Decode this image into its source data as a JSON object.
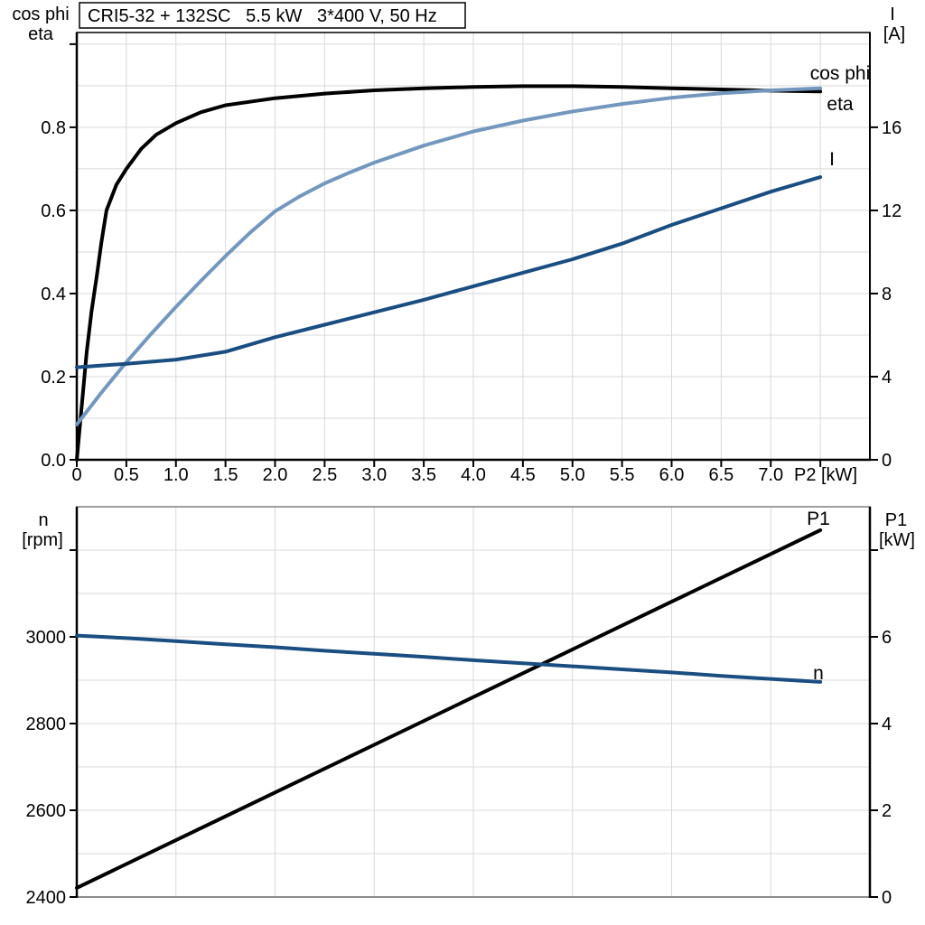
{
  "title": "CRI5-32 + 132SC   5.5 kW   3*400 V, 50 Hz",
  "colors": {
    "eta_p1": "#000000",
    "cos_phi": "#7497be",
    "i_n": "#1a4d80",
    "grid": "#d9d9d9",
    "axis": "#000000",
    "gray_border": "#8c8c8c"
  },
  "chart_data": [
    {
      "type": "line",
      "title": "CRI5-32 + 132SC   5.5 kW   3*400 V, 50 Hz",
      "xlabel": "P2 [kW]",
      "left_header": [
        "cos phi",
        "eta"
      ],
      "right_header": [
        "I",
        "[A]"
      ],
      "xlim": [
        0,
        8
      ],
      "ylim_left": [
        0,
        1.028
      ],
      "ylim_right": [
        0,
        20.56
      ],
      "grid_x": [
        0.5,
        1.0,
        1.5,
        2.0,
        2.5,
        3.0,
        3.5,
        4.0,
        4.5,
        5.0,
        5.5,
        6.0,
        6.5,
        7.0,
        7.5
      ],
      "grid_y_left": [
        0.1,
        0.2,
        0.3,
        0.4,
        0.5,
        0.6,
        0.7,
        0.8,
        0.9,
        1.0
      ],
      "x_tick_values": [
        0,
        0.5,
        1.0,
        1.5,
        2.0,
        2.5,
        3.0,
        3.5,
        4.0,
        4.5,
        5.0,
        5.5,
        6.0,
        6.5,
        7.0,
        7.5
      ],
      "x_tick_labels": [
        "0",
        "0.5",
        "1.0",
        "1.5",
        "2.0",
        "2.5",
        "3.0",
        "3.5",
        "4.0",
        "4.5",
        "5.0",
        "5.5",
        "6.0",
        "6.5",
        "7.0",
        ""
      ],
      "left_tick_values": [
        0,
        0.2,
        0.4,
        0.6,
        0.8,
        1.0
      ],
      "left_tick_labels": [
        "0.0",
        "0.2",
        "0.4",
        "0.6",
        "0.8",
        ""
      ],
      "right_tick_values": [
        0,
        4,
        8,
        12,
        16
      ],
      "right_tick_labels": [
        "0",
        "4",
        "8",
        "12",
        "16"
      ],
      "series": [
        {
          "name": "eta",
          "label": "eta",
          "axis": "left",
          "color": "#000000",
          "width": 4,
          "points": [
            [
              0,
              0
            ],
            [
              0.05,
              0.13
            ],
            [
              0.1,
              0.26
            ],
            [
              0.15,
              0.36
            ],
            [
              0.2,
              0.44
            ],
            [
              0.25,
              0.525
            ],
            [
              0.3,
              0.6
            ],
            [
              0.4,
              0.662
            ],
            [
              0.5,
              0.7
            ],
            [
              0.65,
              0.748
            ],
            [
              0.8,
              0.782
            ],
            [
              1.0,
              0.81
            ],
            [
              1.25,
              0.836
            ],
            [
              1.5,
              0.853
            ],
            [
              2.0,
              0.87
            ],
            [
              2.5,
              0.881
            ],
            [
              3.0,
              0.889
            ],
            [
              3.5,
              0.894
            ],
            [
              4.0,
              0.897
            ],
            [
              4.5,
              0.899
            ],
            [
              5.0,
              0.899
            ],
            [
              5.5,
              0.897
            ],
            [
              6.0,
              0.894
            ],
            [
              6.5,
              0.891
            ],
            [
              7.0,
              0.888
            ],
            [
              7.5,
              0.886
            ]
          ]
        },
        {
          "name": "cos-phi",
          "label": "cos phi",
          "axis": "left",
          "color": "#7497be",
          "width": 4,
          "points": [
            [
              0,
              0.085
            ],
            [
              0.25,
              0.162
            ],
            [
              0.5,
              0.235
            ],
            [
              0.75,
              0.303
            ],
            [
              1.0,
              0.368
            ],
            [
              1.25,
              0.43
            ],
            [
              1.5,
              0.49
            ],
            [
              1.75,
              0.547
            ],
            [
              2.0,
              0.598
            ],
            [
              2.25,
              0.634
            ],
            [
              2.5,
              0.665
            ],
            [
              2.75,
              0.691
            ],
            [
              3.0,
              0.715
            ],
            [
              3.5,
              0.756
            ],
            [
              4.0,
              0.79
            ],
            [
              4.5,
              0.816
            ],
            [
              5.0,
              0.838
            ],
            [
              5.5,
              0.856
            ],
            [
              6.0,
              0.871
            ],
            [
              6.5,
              0.882
            ],
            [
              7.0,
              0.889
            ],
            [
              7.5,
              0.894
            ]
          ]
        },
        {
          "name": "current",
          "label": "I",
          "axis": "right",
          "color": "#1a4d80",
          "width": 4,
          "points": [
            [
              0,
              4.45
            ],
            [
              0.5,
              4.62
            ],
            [
              1.0,
              4.82
            ],
            [
              1.5,
              5.2
            ],
            [
              2.0,
              5.9
            ],
            [
              2.5,
              6.5
            ],
            [
              3.0,
              7.1
            ],
            [
              3.5,
              7.7
            ],
            [
              4.0,
              8.35
            ],
            [
              4.5,
              9.0
            ],
            [
              5.0,
              9.65
            ],
            [
              5.5,
              10.4
            ],
            [
              6.0,
              11.3
            ],
            [
              6.5,
              12.1
            ],
            [
              7.0,
              12.9
            ],
            [
              7.5,
              13.6
            ]
          ]
        }
      ]
    },
    {
      "type": "line",
      "title": "",
      "xlabel": "",
      "left_header": [
        "n",
        "[rpm]"
      ],
      "right_header": [
        "P1",
        "[kW]"
      ],
      "xlim": [
        0,
        8
      ],
      "ylim_left": [
        2400,
        3300
      ],
      "ylim_right": [
        0,
        9
      ],
      "grid_x": [
        1,
        2,
        3,
        4,
        5,
        6,
        7
      ],
      "grid_y_left": [
        2500,
        2600,
        2700,
        2800,
        2900,
        3000,
        3100,
        3200
      ],
      "x_tick_values": [],
      "x_tick_labels": [],
      "left_tick_values": [
        2400,
        2600,
        2800,
        3000,
        3200
      ],
      "left_tick_labels": [
        "2400",
        "2600",
        "2800",
        "3000",
        ""
      ],
      "right_tick_values": [
        0,
        2,
        4,
        6,
        8
      ],
      "right_tick_labels": [
        "0",
        "2",
        "4",
        "6",
        ""
      ],
      "series": [
        {
          "name": "p1",
          "label": "P1",
          "axis": "right",
          "color": "#000000",
          "width": 4,
          "points": [
            [
              0,
              0.21
            ],
            [
              1,
              1.31
            ],
            [
              2,
              2.41
            ],
            [
              3,
              3.51
            ],
            [
              4,
              4.61
            ],
            [
              5,
              5.71
            ],
            [
              6,
              6.81
            ],
            [
              7,
              7.91
            ],
            [
              7.5,
              8.46
            ]
          ]
        },
        {
          "name": "speed",
          "label": "n",
          "axis": "left",
          "color": "#1a4d80",
          "width": 4,
          "points": [
            [
              0,
              3003
            ],
            [
              0.5,
              2997
            ],
            [
              1,
              2990
            ],
            [
              1.5,
              2983
            ],
            [
              2,
              2976
            ],
            [
              2.5,
              2968
            ],
            [
              3,
              2961
            ],
            [
              3.5,
              2954
            ],
            [
              4,
              2946
            ],
            [
              4.5,
              2939
            ],
            [
              5,
              2932
            ],
            [
              5.5,
              2925
            ],
            [
              6,
              2918
            ],
            [
              6.5,
              2910
            ],
            [
              7,
              2903
            ],
            [
              7.5,
              2896
            ]
          ]
        }
      ]
    }
  ]
}
